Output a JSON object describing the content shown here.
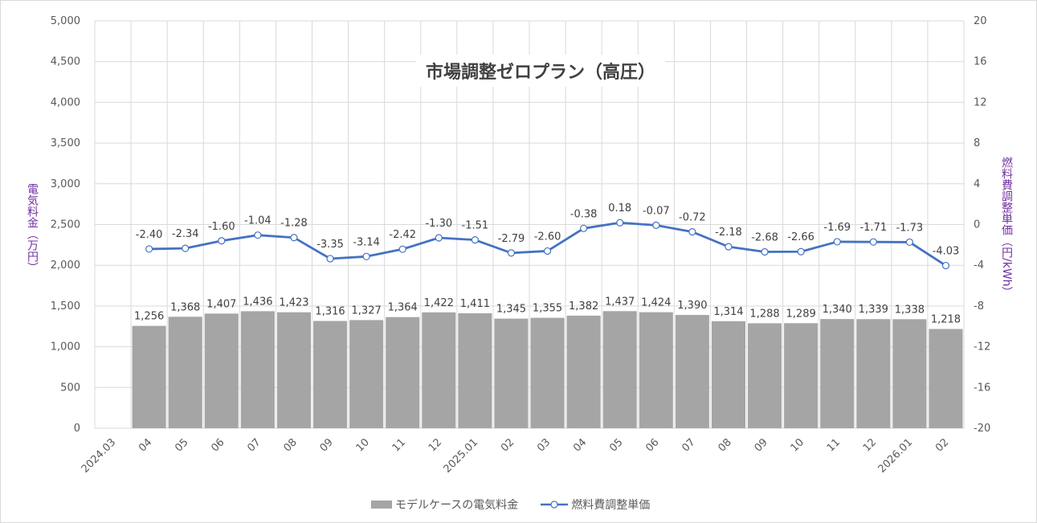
{
  "chart_data": {
    "type": "bar+line",
    "title": "市場調整ゼロプラン（高圧）",
    "categories": [
      "2024.03",
      "04",
      "05",
      "06",
      "07",
      "08",
      "09",
      "10",
      "11",
      "12",
      "2025.01",
      "02",
      "03",
      "04",
      "05",
      "06",
      "07",
      "08",
      "09",
      "10",
      "11",
      "12",
      "2026.01",
      "02"
    ],
    "ylabel_left": "電気料金（万円）",
    "ylabel_right": "燃料費調整単価（円/kWh）",
    "ylim_left": [
      0,
      5000
    ],
    "yticks_left": [
      "0",
      "500",
      "1,000",
      "1,500",
      "2,000",
      "2,500",
      "3,000",
      "3,500",
      "4,000",
      "4,500",
      "5,000"
    ],
    "ylim_right": [
      -20,
      20
    ],
    "yticks_right": [
      "-20",
      "-16",
      "-12",
      "-8",
      "-4",
      "0",
      "4",
      "8",
      "12",
      "16",
      "20"
    ],
    "grid": true,
    "legend_position": "bottom",
    "series": [
      {
        "name": "モデルケースの電気料金",
        "type": "bar",
        "axis": "left",
        "color": "#a5a5a5",
        "values": [
          null,
          1256,
          1368,
          1407,
          1436,
          1423,
          1316,
          1327,
          1364,
          1422,
          1411,
          1345,
          1355,
          1382,
          1437,
          1424,
          1390,
          1314,
          1288,
          1289,
          1340,
          1339,
          1338,
          1218
        ],
        "labels": [
          "",
          "1,256",
          "1,368",
          "1,407",
          "1,436",
          "1,423",
          "1,316",
          "1,327",
          "1,364",
          "1,422",
          "1,411",
          "1,345",
          "1,355",
          "1,382",
          "1,437",
          "1,424",
          "1,390",
          "1,314",
          "1,288",
          "1,289",
          "1,340",
          "1,339",
          "1,338",
          "1,218"
        ]
      },
      {
        "name": "燃料費調整単価",
        "type": "line",
        "axis": "right",
        "color": "#4472c4",
        "values": [
          null,
          -2.4,
          -2.34,
          -1.6,
          -1.04,
          -1.28,
          -3.35,
          -3.14,
          -2.42,
          -1.3,
          -1.51,
          -2.79,
          -2.6,
          -0.38,
          0.18,
          -0.07,
          -0.72,
          -2.18,
          -2.68,
          -2.66,
          -1.69,
          -1.71,
          -1.73,
          -4.03
        ],
        "labels": [
          "",
          "-2.40",
          "-2.34",
          "-1.60",
          "-1.04",
          "-1.28",
          "-3.35",
          "-3.14",
          "-2.42",
          "-1.30",
          "-1.51",
          "-2.79",
          "-2.60",
          "-0.38",
          "0.18",
          "-0.07",
          "-0.72",
          "-2.18",
          "-2.68",
          "-2.66",
          "-1.69",
          "-1.71",
          "-1.73",
          "-4.03"
        ]
      }
    ]
  }
}
